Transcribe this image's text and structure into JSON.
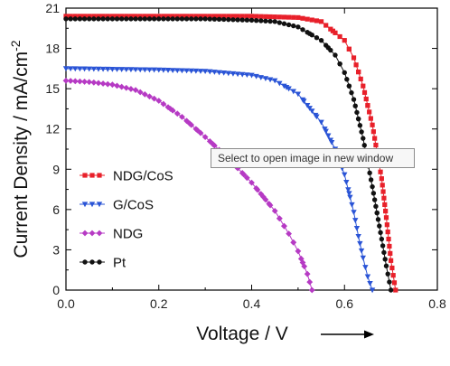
{
  "chart_data": {
    "type": "line",
    "xlabel": "Voltage / V",
    "ylabel": "Current Density / mA/cm",
    "ylabel_sup": "-2",
    "xlim": [
      0.0,
      0.8
    ],
    "ylim": [
      0,
      21
    ],
    "xticks": [
      "0.0",
      "0.2",
      "0.4",
      "0.6",
      "0.8"
    ],
    "yticks": [
      "0",
      "3",
      "6",
      "9",
      "12",
      "15",
      "18",
      "21"
    ],
    "grid": false,
    "legend_position": "lower-left",
    "series": [
      {
        "name": "NDG/CoS",
        "color": "#e8202a",
        "marker": "square",
        "x": [
          0.0,
          0.1,
          0.2,
          0.3,
          0.4,
          0.5,
          0.55,
          0.6,
          0.62,
          0.64,
          0.66,
          0.68,
          0.69,
          0.7,
          0.71
        ],
        "y": [
          20.4,
          20.4,
          20.4,
          20.4,
          20.4,
          20.3,
          20.0,
          18.6,
          17.3,
          15.2,
          12.3,
          8.3,
          5.4,
          2.2,
          0.0
        ]
      },
      {
        "name": "G/CoS",
        "color": "#2a54d6",
        "marker": "triangle-down",
        "x": [
          0.0,
          0.1,
          0.2,
          0.3,
          0.4,
          0.45,
          0.5,
          0.55,
          0.58,
          0.6,
          0.62,
          0.63,
          0.64,
          0.65,
          0.66
        ],
        "y": [
          16.5,
          16.45,
          16.4,
          16.3,
          16.0,
          15.6,
          14.6,
          12.5,
          10.5,
          8.6,
          5.8,
          4.0,
          2.4,
          1.0,
          0.0
        ]
      },
      {
        "name": "NDG",
        "color": "#b63ac4",
        "marker": "diamond",
        "x": [
          0.0,
          0.05,
          0.1,
          0.15,
          0.2,
          0.25,
          0.3,
          0.35,
          0.4,
          0.45,
          0.48,
          0.5,
          0.52,
          0.53
        ],
        "y": [
          15.6,
          15.5,
          15.3,
          14.9,
          14.1,
          12.9,
          11.4,
          9.8,
          8.0,
          5.9,
          4.2,
          2.9,
          1.2,
          0.0
        ]
      },
      {
        "name": "Pt",
        "color": "#111111",
        "marker": "circle",
        "x": [
          0.0,
          0.1,
          0.2,
          0.3,
          0.4,
          0.45,
          0.5,
          0.55,
          0.58,
          0.6,
          0.62,
          0.64,
          0.66,
          0.68,
          0.69,
          0.7
        ],
        "y": [
          20.2,
          20.2,
          20.2,
          20.2,
          20.1,
          20.0,
          19.6,
          18.6,
          17.5,
          16.2,
          14.2,
          11.3,
          7.7,
          3.8,
          1.8,
          0.0
        ]
      }
    ]
  },
  "tooltip": {
    "text": "Select to open image in new window"
  }
}
